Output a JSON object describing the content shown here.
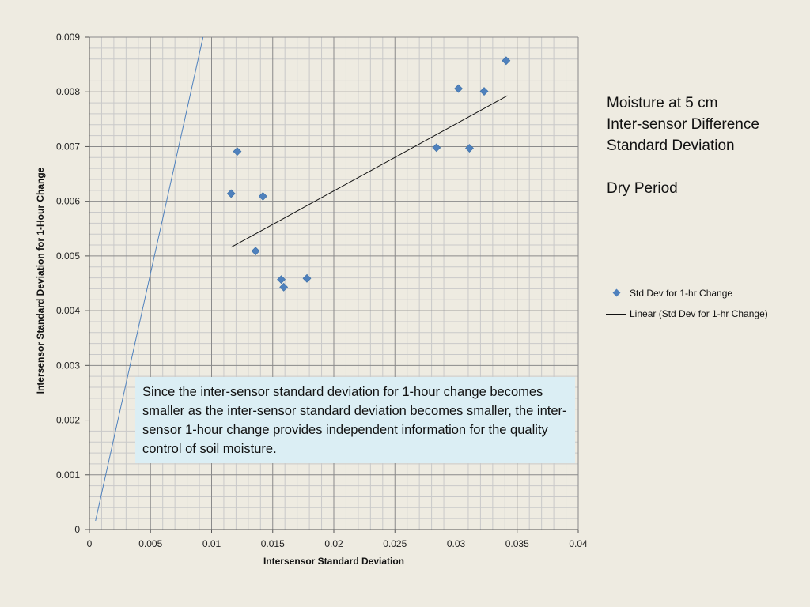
{
  "title_lines": [
    "Moisture at 5 cm",
    "Inter-sensor Difference",
    "Standard Deviation",
    "",
    "Dry Period"
  ],
  "note": "Since the inter-sensor standard deviation for 1-hour change becomes smaller as the inter-sensor standard deviation becomes smaller, the inter-sensor 1-hour change provides independent information for the quality control of soil moisture.",
  "colors": {
    "series": "#4f81bd",
    "trendline": "#111111",
    "reference_line": "#4f81bd",
    "background": "#eeebe1",
    "note_background": "#dbeef4"
  },
  "legend": [
    {
      "label": "Std Dev for 1-hr Change",
      "marker": "diamond"
    },
    {
      "label": "Linear (Std Dev for 1-hr Change)",
      "marker": "line"
    }
  ],
  "chart_data": {
    "type": "scatter",
    "xlabel": "Intersensor Standard Deviation",
    "ylabel": "Intersensor Standard Deviation for 1-Hour Change",
    "xlim": [
      0,
      0.04
    ],
    "ylim": [
      0,
      0.009
    ],
    "x_ticks": [
      "0",
      "0.005",
      "0.01",
      "0.015",
      "0.02",
      "0.025",
      "0.03",
      "0.035",
      "0.04"
    ],
    "y_ticks": [
      "0",
      "0.001",
      "0.002",
      "0.003",
      "0.004",
      "0.005",
      "0.006",
      "0.007",
      "0.008",
      "0.009"
    ],
    "grid": true,
    "series": [
      {
        "name": "Std Dev for 1-hr Change",
        "points": [
          [
            0.0116,
            0.00614
          ],
          [
            0.0121,
            0.00691
          ],
          [
            0.0142,
            0.00609
          ],
          [
            0.0136,
            0.00509
          ],
          [
            0.0157,
            0.00457
          ],
          [
            0.0159,
            0.00443
          ],
          [
            0.0178,
            0.00459
          ],
          [
            0.0284,
            0.00698
          ],
          [
            0.0302,
            0.00806
          ],
          [
            0.0311,
            0.00697
          ],
          [
            0.0323,
            0.00801
          ],
          [
            0.0341,
            0.00857
          ]
        ]
      }
    ],
    "trendline": {
      "name": "Linear (Std Dev for 1-hr Change)",
      "from": [
        0.0116,
        0.00516
      ],
      "to": [
        0.0342,
        0.00793
      ]
    },
    "reference_line": {
      "from": [
        0.0005,
        0.00016
      ],
      "to": [
        0.0093,
        0.009
      ]
    }
  }
}
